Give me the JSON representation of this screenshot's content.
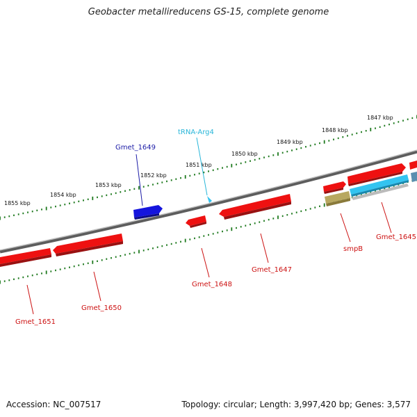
{
  "title": "Geobacter metallireducens GS-15, complete genome",
  "footer": {
    "accession": "Accession: NC_007517",
    "topology": "Topology: circular; Length: 3,997,420 bp; Genes: 3,577"
  },
  "scale_labels": [
    "1847 kbp",
    "1848 kbp",
    "1849 kbp",
    "1850 kbp",
    "1851 kbp",
    "1852 kbp",
    "1853 kbp",
    "1854 kbp",
    "1855 kbp"
  ],
  "features": [
    {
      "label": "Gmet_1645",
      "color": "#cc1111"
    },
    {
      "label": "smpB",
      "color": "#cc1111"
    },
    {
      "label": "Gmet_1647",
      "color": "#cc1111"
    },
    {
      "label": "Gmet_1648",
      "color": "#cc1111"
    },
    {
      "label": "Gmet_1649",
      "color": "#1a1aa6"
    },
    {
      "label": "tRNA-Arg4",
      "color": "#29b6d9"
    },
    {
      "label": "Gmet_1650",
      "color": "#cc1111"
    },
    {
      "label": "Gmet_1651",
      "color": "#cc1111"
    }
  ],
  "colors": {
    "backbone": "#777777",
    "tick": "#1f7a1f",
    "forward_gene": "#ee1111",
    "reverse_gene": "#ee1111",
    "blue_gene": "#1515dd",
    "trna": "#33c4f0",
    "smpb_gene": "#b8a860",
    "grey_feature": "#bbbbbb"
  }
}
